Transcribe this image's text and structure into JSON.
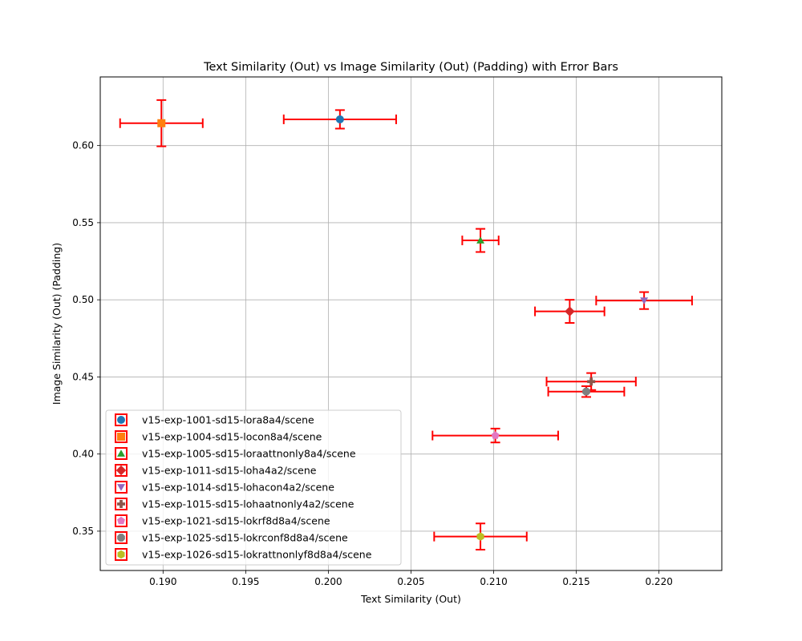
{
  "chart_data": {
    "type": "scatter",
    "title": "Text Similarity (Out) vs Image Similarity (Out) (Padding) with Error Bars",
    "xlabel": "Text Similarity (Out)",
    "ylabel": "Image Similarity (Out) (Padding)",
    "xlim": [
      0.1862,
      0.2238
    ],
    "ylim": [
      0.3245,
      0.6445
    ],
    "xticks": [
      0.19,
      0.195,
      0.2,
      0.205,
      0.21,
      0.215,
      0.22
    ],
    "xtick_labels": [
      "0.190",
      "0.195",
      "0.200",
      "0.205",
      "0.210",
      "0.215",
      "0.220"
    ],
    "yticks": [
      0.35,
      0.4,
      0.45,
      0.5,
      0.55,
      0.6
    ],
    "ytick_labels": [
      "0.35",
      "0.40",
      "0.45",
      "0.50",
      "0.55",
      "0.60"
    ],
    "grid": true,
    "legend_position": "lower-left",
    "error_bar_color": "#ff0000",
    "series": [
      {
        "name": "v15-exp-1001-sd15-lora8a4/scene",
        "marker": "circle",
        "color": "#1f77b4",
        "x": 0.2007,
        "y": 0.617,
        "xerr": 0.0034,
        "yerr": 0.006
      },
      {
        "name": "v15-exp-1004-sd15-locon8a4/scene",
        "marker": "square",
        "color": "#ff7f0e",
        "x": 0.1899,
        "y": 0.6145,
        "xerr": 0.0025,
        "yerr": 0.015
      },
      {
        "name": "v15-exp-1005-sd15-loraattnonly8a4/scene",
        "marker": "triangle-up",
        "color": "#2ca02c",
        "x": 0.2092,
        "y": 0.5385,
        "xerr": 0.0011,
        "yerr": 0.0075
      },
      {
        "name": "v15-exp-1011-sd15-loha4a2/scene",
        "marker": "diamond",
        "color": "#d62728",
        "x": 0.2146,
        "y": 0.4925,
        "xerr": 0.0021,
        "yerr": 0.0075
      },
      {
        "name": "v15-exp-1014-sd15-lohacon4a2/scene",
        "marker": "triangle-down",
        "color": "#9467bd",
        "x": 0.2191,
        "y": 0.4995,
        "xerr": 0.0029,
        "yerr": 0.0055
      },
      {
        "name": "v15-exp-1015-sd15-lohaatnonly4a2/scene",
        "marker": "plus",
        "color": "#8c564b",
        "x": 0.2159,
        "y": 0.447,
        "xerr": 0.0027,
        "yerr": 0.0055
      },
      {
        "name": "v15-exp-1021-sd15-lokrf8d8a4/scene",
        "marker": "pentagon",
        "color": "#e377c2",
        "x": 0.2101,
        "y": 0.412,
        "xerr": 0.0038,
        "yerr": 0.0045
      },
      {
        "name": "v15-exp-1025-sd15-lokrconf8d8a4/scene",
        "marker": "octagon",
        "color": "#7f7f7f",
        "x": 0.2156,
        "y": 0.4405,
        "xerr": 0.0023,
        "yerr": 0.0035
      },
      {
        "name": "v15-exp-1026-sd15-lokrattnonlyf8d8a4/scene",
        "marker": "hexagon",
        "color": "#bcbd22",
        "x": 0.2092,
        "y": 0.3465,
        "xerr": 0.0028,
        "yerr": 0.0085
      }
    ]
  }
}
